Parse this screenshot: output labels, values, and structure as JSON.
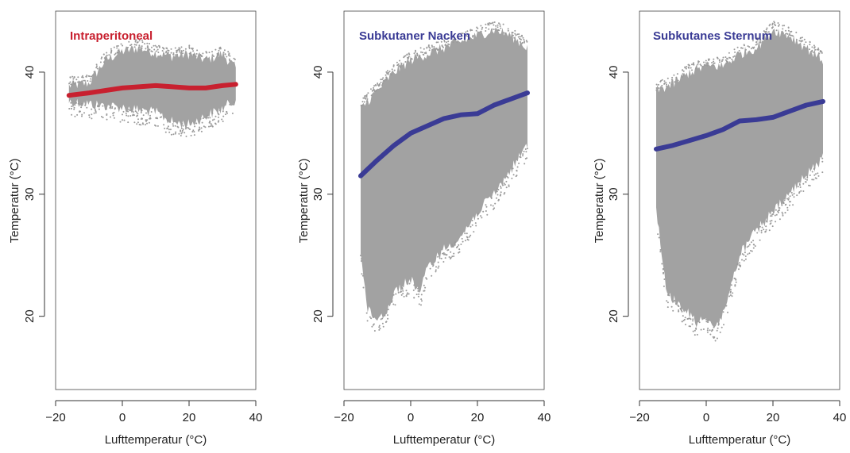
{
  "panels": [
    {
      "title": "Intraperitoneal",
      "title_color": "#c8202f",
      "xlabel": "Lufttemperatur (°C)",
      "ylabel": "Temperatur (°C)"
    },
    {
      "title": "Subkutaner Nacken",
      "title_color": "#3a3b95",
      "xlabel": "Lufttemperatur (°C)",
      "ylabel": "Temperatur (°C)"
    },
    {
      "title": "Subkutanes Sternum",
      "title_color": "#3a3b95",
      "xlabel": "Lufttemperatur (°C)",
      "ylabel": "Temperatur (°C)"
    }
  ],
  "chart_data": [
    {
      "type": "scatter",
      "title": "Intraperitoneal",
      "xlabel": "Lufttemperatur (°C)",
      "ylabel": "Temperatur (°C)",
      "xlim": [
        -20,
        40
      ],
      "ylim": [
        14,
        45
      ],
      "xticks": [
        -20,
        0,
        20,
        40
      ],
      "yticks": [
        20,
        30,
        40
      ],
      "grid": false,
      "point_color": "#9a9a9a",
      "point_cloud": {
        "x_range": [
          -16,
          34
        ],
        "y_lower": [
          [
            -16,
            37.6
          ],
          [
            -10,
            37.4
          ],
          [
            0,
            37.1
          ],
          [
            10,
            36.7
          ],
          [
            15,
            35.9
          ],
          [
            20,
            35.7
          ],
          [
            25,
            36.4
          ],
          [
            30,
            37.0
          ],
          [
            34,
            37.8
          ]
        ],
        "y_upper": [
          [
            -16,
            38.9
          ],
          [
            -10,
            39.1
          ],
          [
            -5,
            41.0
          ],
          [
            0,
            41.7
          ],
          [
            5,
            42.0
          ],
          [
            10,
            41.6
          ],
          [
            15,
            41.3
          ],
          [
            20,
            41.5
          ],
          [
            25,
            41.0
          ],
          [
            30,
            41.5
          ],
          [
            34,
            40.3
          ]
        ]
      },
      "series": [
        {
          "color": "#c8202f",
          "x": [
            -16,
            -10,
            -5,
            0,
            5,
            10,
            15,
            20,
            25,
            30,
            34
          ],
          "y": [
            38.1,
            38.3,
            38.5,
            38.7,
            38.8,
            38.9,
            38.8,
            38.7,
            38.7,
            38.9,
            39.0
          ]
        }
      ]
    },
    {
      "type": "scatter",
      "title": "Subkutaner Nacken",
      "xlabel": "Lufttemperatur (°C)",
      "ylabel": "Temperatur (°C)",
      "xlim": [
        -20,
        40
      ],
      "ylim": [
        14,
        45
      ],
      "xticks": [
        -20,
        0,
        20,
        40
      ],
      "yticks": [
        20,
        30,
        40
      ],
      "grid": false,
      "point_color": "#9a9a9a",
      "point_cloud": {
        "x_range": [
          -15,
          35
        ],
        "y_lower": [
          [
            -15,
            25.5
          ],
          [
            -13,
            20.5
          ],
          [
            -10,
            19.8
          ],
          [
            -7,
            20.5
          ],
          [
            -5,
            22.0
          ],
          [
            0,
            23.0
          ],
          [
            3,
            22.0
          ],
          [
            5,
            24.0
          ],
          [
            10,
            25.5
          ],
          [
            15,
            26.5
          ],
          [
            20,
            28.5
          ],
          [
            25,
            30.0
          ],
          [
            30,
            32.0
          ],
          [
            35,
            34.0
          ]
        ],
        "y_upper": [
          [
            -15,
            37.0
          ],
          [
            -10,
            38.5
          ],
          [
            -5,
            40.0
          ],
          [
            0,
            41.0
          ],
          [
            5,
            41.5
          ],
          [
            10,
            42.0
          ],
          [
            15,
            42.5
          ],
          [
            20,
            43.0
          ],
          [
            25,
            43.5
          ],
          [
            30,
            43.0
          ],
          [
            35,
            42.0
          ]
        ]
      },
      "series": [
        {
          "color": "#3a3b95",
          "x": [
            -15,
            -10,
            -5,
            0,
            5,
            10,
            15,
            20,
            25,
            30,
            35
          ],
          "y": [
            31.5,
            32.8,
            34.0,
            35.0,
            35.6,
            36.2,
            36.5,
            36.6,
            37.3,
            37.8,
            38.3
          ]
        }
      ]
    },
    {
      "type": "scatter",
      "title": "Subkutanes Sternum",
      "xlabel": "Lufttemperatur (°C)",
      "ylabel": "Temperatur (°C)",
      "xlim": [
        -20,
        40
      ],
      "ylim": [
        14,
        45
      ],
      "xticks": [
        -20,
        0,
        20,
        40
      ],
      "yticks": [
        20,
        30,
        40
      ],
      "grid": false,
      "point_color": "#9a9a9a",
      "point_cloud": {
        "x_range": [
          -15,
          35
        ],
        "y_lower": [
          [
            -15,
            29.0
          ],
          [
            -12,
            22.0
          ],
          [
            -8,
            21.0
          ],
          [
            -3,
            19.5
          ],
          [
            0,
            20.0
          ],
          [
            3,
            19.0
          ],
          [
            6,
            21.0
          ],
          [
            10,
            25.0
          ],
          [
            15,
            27.0
          ],
          [
            20,
            28.5
          ],
          [
            25,
            30.0
          ],
          [
            30,
            31.5
          ],
          [
            35,
            33.0
          ]
        ],
        "y_upper": [
          [
            -15,
            38.5
          ],
          [
            -10,
            39.0
          ],
          [
            -5,
            40.0
          ],
          [
            0,
            40.5
          ],
          [
            5,
            40.5
          ],
          [
            10,
            41.5
          ],
          [
            15,
            42.0
          ],
          [
            20,
            43.5
          ],
          [
            25,
            43.0
          ],
          [
            30,
            42.0
          ],
          [
            35,
            41.0
          ]
        ]
      },
      "series": [
        {
          "color": "#3a3b95",
          "x": [
            -15,
            -10,
            -5,
            0,
            5,
            10,
            15,
            20,
            25,
            30,
            35
          ],
          "y": [
            33.7,
            34.0,
            34.4,
            34.8,
            35.3,
            36.0,
            36.1,
            36.3,
            36.8,
            37.3,
            37.6
          ]
        }
      ]
    }
  ]
}
